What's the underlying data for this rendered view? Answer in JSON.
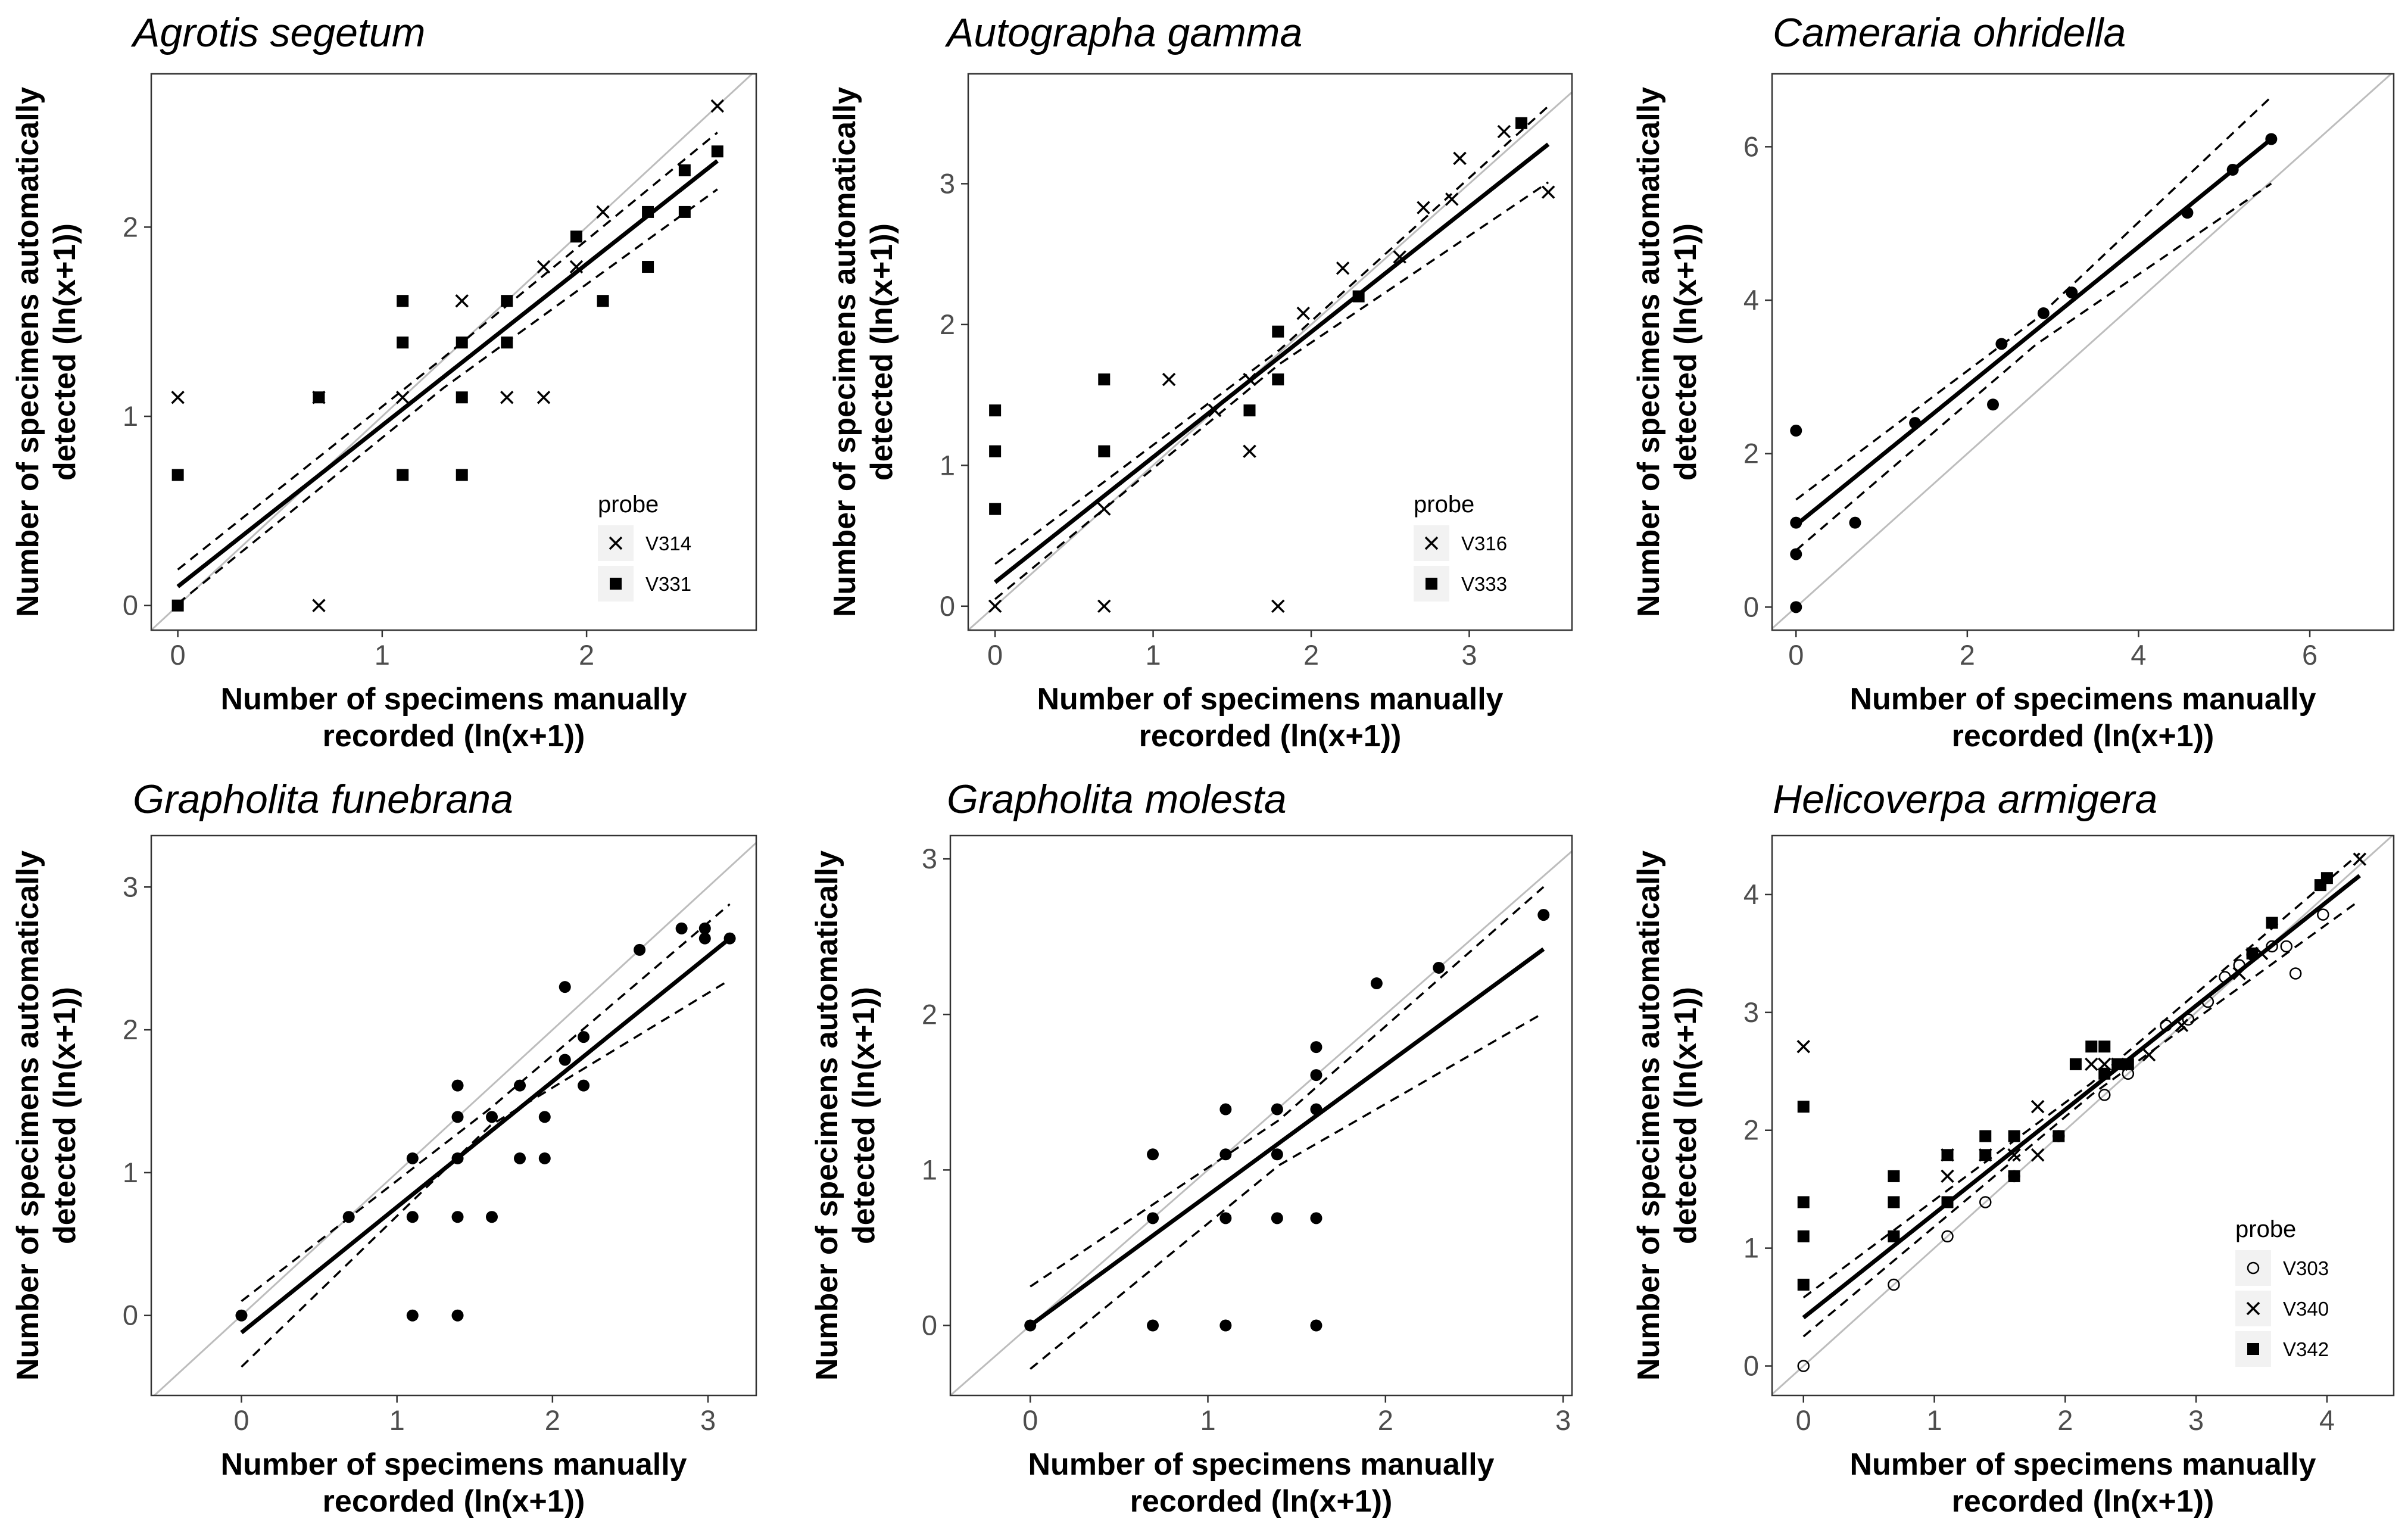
{
  "figure": {
    "description_free": true
  },
  "chart_data": [
    {
      "type": "scatter",
      "title": "Agrotis segetum",
      "xlabel": [
        "Number of specimens manually",
        "recorded (ln(x+1))"
      ],
      "ylabel": [
        "Number of specimens automatically",
        "detected (ln(x+1))"
      ],
      "xlim": [
        -0.13,
        2.83
      ],
      "ylim": [
        -0.13,
        2.81
      ],
      "xticks": [
        0,
        1,
        2
      ],
      "yticks": [
        0,
        1,
        2
      ],
      "fit": {
        "x0": 0,
        "y0": 0.1,
        "x1": 2.64,
        "y1": 2.35
      },
      "ci_upper": [
        [
          0,
          0.19
        ],
        [
          1.3,
          1.31
        ],
        [
          2.64,
          2.5
        ]
      ],
      "ci_lower": [
        [
          0,
          0.01
        ],
        [
          1.3,
          1.15
        ],
        [
          2.64,
          2.2
        ]
      ],
      "legend": {
        "title": "probe",
        "position": "bottom-right",
        "items": [
          {
            "label": "V314",
            "shape": "x"
          },
          {
            "label": "V331",
            "shape": "square"
          }
        ]
      },
      "series": [
        {
          "name": "V314",
          "shape": "x",
          "points": [
            [
              0,
              1.1
            ],
            [
              0.69,
              1.1
            ],
            [
              0.69,
              0
            ],
            [
              1.1,
              1.1
            ],
            [
              1.39,
              1.61
            ],
            [
              1.61,
              1.1
            ],
            [
              1.79,
              1.1
            ],
            [
              1.79,
              1.79
            ],
            [
              1.95,
              1.79
            ],
            [
              2.08,
              2.08
            ],
            [
              2.64,
              2.64
            ]
          ]
        },
        {
          "name": "V331",
          "shape": "square",
          "points": [
            [
              0,
              0.69
            ],
            [
              0,
              0
            ],
            [
              0.69,
              1.1
            ],
            [
              1.1,
              1.61
            ],
            [
              1.1,
              1.39
            ],
            [
              1.1,
              0.69
            ],
            [
              1.39,
              1.39
            ],
            [
              1.39,
              1.1
            ],
            [
              1.39,
              0.69
            ],
            [
              1.61,
              1.61
            ],
            [
              1.61,
              1.39
            ],
            [
              1.95,
              1.95
            ],
            [
              2.08,
              1.61
            ],
            [
              2.3,
              2.08
            ],
            [
              2.3,
              1.79
            ],
            [
              2.48,
              2.3
            ],
            [
              2.48,
              2.08
            ],
            [
              2.64,
              2.4
            ]
          ]
        }
      ]
    },
    {
      "type": "scatter",
      "title": "Autographa gamma",
      "xlabel": [
        "Number of specimens manually",
        "recorded (ln(x+1))"
      ],
      "ylabel": [
        "Number of specimens automatically",
        "detected (ln(x+1))"
      ],
      "xlim": [
        -0.17,
        3.65
      ],
      "ylim": [
        -0.17,
        3.78
      ],
      "xticks": [
        0,
        1,
        2,
        3
      ],
      "yticks": [
        0,
        1,
        2,
        3
      ],
      "fit": {
        "x0": 0,
        "y0": 0.17,
        "x1": 3.5,
        "y1": 3.28
      },
      "ci_upper": [
        [
          0,
          0.3
        ],
        [
          1.8,
          1.82
        ],
        [
          3.5,
          3.55
        ]
      ],
      "ci_lower": [
        [
          0,
          0.05
        ],
        [
          1.8,
          1.72
        ],
        [
          3.5,
          3.01
        ]
      ],
      "legend": {
        "title": "probe",
        "position": "bottom-right",
        "items": [
          {
            "label": "V316",
            "shape": "x"
          },
          {
            "label": "V333",
            "shape": "square"
          }
        ]
      },
      "series": [
        {
          "name": "V316",
          "shape": "x",
          "points": [
            [
              0,
              0
            ],
            [
              0.69,
              0.69
            ],
            [
              0.69,
              0
            ],
            [
              1.1,
              1.61
            ],
            [
              1.39,
              1.39
            ],
            [
              1.61,
              1.61
            ],
            [
              1.61,
              1.1
            ],
            [
              1.79,
              0
            ],
            [
              1.95,
              2.08
            ],
            [
              2.2,
              2.4
            ],
            [
              2.56,
              2.48
            ],
            [
              2.71,
              2.83
            ],
            [
              2.89,
              2.89
            ],
            [
              2.94,
              3.18
            ],
            [
              3.22,
              3.37
            ],
            [
              3.5,
              2.94
            ]
          ]
        },
        {
          "name": "V333",
          "shape": "square",
          "points": [
            [
              0,
              1.39
            ],
            [
              0,
              1.1
            ],
            [
              0,
              0.69
            ],
            [
              0.69,
              1.61
            ],
            [
              0.69,
              1.1
            ],
            [
              1.61,
              1.39
            ],
            [
              1.79,
              1.95
            ],
            [
              1.79,
              1.61
            ],
            [
              2.3,
              2.2
            ],
            [
              3.33,
              3.43
            ]
          ]
        }
      ]
    },
    {
      "type": "scatter",
      "title": "Cameraria ohridella",
      "xlabel": [
        "Number of specimens manually",
        "recorded (ln(x+1))"
      ],
      "ylabel": [
        "Number of specimens automatically",
        "detected (ln(x+1))"
      ],
      "xlim": [
        -0.28,
        6.98
      ],
      "ylim": [
        -0.3,
        6.95
      ],
      "xticks": [
        0,
        2,
        4,
        6
      ],
      "yticks": [
        0,
        2,
        4,
        6
      ],
      "fit": {
        "x0": 0,
        "y0": 1.07,
        "x1": 5.55,
        "y1": 6.1
      },
      "ci_upper": [
        [
          0,
          1.4
        ],
        [
          2.8,
          3.75
        ],
        [
          5.55,
          6.65
        ]
      ],
      "ci_lower": [
        [
          0,
          0.74
        ],
        [
          2.8,
          3.42
        ],
        [
          5.55,
          5.52
        ]
      ],
      "legend": null,
      "series": [
        {
          "name": "points",
          "shape": "circle",
          "points": [
            [
              0,
              2.3
            ],
            [
              0,
              1.1
            ],
            [
              0,
              0.69
            ],
            [
              0,
              0
            ],
            [
              0.69,
              1.1
            ],
            [
              1.39,
              2.4
            ],
            [
              2.3,
              2.64
            ],
            [
              2.4,
              3.43
            ],
            [
              2.89,
              3.83
            ],
            [
              3.22,
              4.1
            ],
            [
              4.57,
              5.14
            ],
            [
              5.1,
              5.7
            ],
            [
              5.55,
              6.1
            ]
          ]
        }
      ]
    },
    {
      "type": "scatter",
      "title": "Grapholita funebrana",
      "xlabel": [
        "Number of specimens manually",
        "recorded (ln(x+1))"
      ],
      "ylabel": [
        "Number of specimens automatically",
        "detected (ln(x+1))"
      ],
      "xlim": [
        -0.58,
        3.31
      ],
      "ylim": [
        -0.56,
        3.36
      ],
      "xticks": [
        0,
        1,
        2,
        3
      ],
      "yticks": [
        0,
        1,
        2,
        3
      ],
      "fit": {
        "x0": 0,
        "y0": -0.12,
        "x1": 3.14,
        "y1": 2.64
      },
      "ci_upper": [
        [
          0,
          0.1
        ],
        [
          1.6,
          1.45
        ],
        [
          3.14,
          2.88
        ]
      ],
      "ci_lower": [
        [
          0,
          -0.36
        ],
        [
          1.6,
          1.33
        ],
        [
          3.14,
          2.35
        ]
      ],
      "legend": null,
      "series": [
        {
          "name": "points",
          "shape": "circle",
          "points": [
            [
              0,
              0
            ],
            [
              0.69,
              0.69
            ],
            [
              1.1,
              1.1
            ],
            [
              1.1,
              0.69
            ],
            [
              1.1,
              0
            ],
            [
              1.39,
              1.61
            ],
            [
              1.39,
              1.39
            ],
            [
              1.39,
              1.1
            ],
            [
              1.39,
              0.69
            ],
            [
              1.39,
              0
            ],
            [
              1.61,
              1.39
            ],
            [
              1.61,
              0.69
            ],
            [
              1.79,
              1.61
            ],
            [
              1.79,
              1.1
            ],
            [
              1.95,
              1.39
            ],
            [
              1.95,
              1.1
            ],
            [
              2.08,
              2.3
            ],
            [
              2.08,
              1.79
            ],
            [
              2.2,
              1.95
            ],
            [
              2.2,
              1.61
            ],
            [
              2.56,
              2.56
            ],
            [
              2.83,
              2.71
            ],
            [
              2.98,
              2.71
            ],
            [
              2.98,
              2.64
            ],
            [
              3.14,
              2.64
            ]
          ]
        }
      ]
    },
    {
      "type": "scatter",
      "title": "Grapholita molesta",
      "xlabel": [
        "Number of specimens manually",
        "recorded (ln(x+1))"
      ],
      "ylabel": [
        "Number of specimens automatically",
        "detected (ln(x+1))"
      ],
      "xlim": [
        -0.45,
        3.05
      ],
      "ylim": [
        -0.45,
        3.15
      ],
      "xticks": [
        0,
        1,
        2,
        3
      ],
      "yticks": [
        0,
        1,
        2,
        3
      ],
      "fit": {
        "x0": 0,
        "y0": 0,
        "x1": 2.89,
        "y1": 2.42
      },
      "ci_upper": [
        [
          0,
          0.25
        ],
        [
          1.4,
          1.32
        ],
        [
          2.89,
          2.82
        ]
      ],
      "ci_lower": [
        [
          0,
          -0.28
        ],
        [
          1.4,
          1.03
        ],
        [
          2.89,
          2.01
        ]
      ],
      "legend": null,
      "series": [
        {
          "name": "points",
          "shape": "circle",
          "points": [
            [
              0,
              0
            ],
            [
              0.69,
              1.1
            ],
            [
              0.69,
              0.69
            ],
            [
              0.69,
              0
            ],
            [
              1.1,
              1.39
            ],
            [
              1.1,
              1.1
            ],
            [
              1.1,
              0.69
            ],
            [
              1.1,
              0
            ],
            [
              1.39,
              1.39
            ],
            [
              1.39,
              1.1
            ],
            [
              1.39,
              0.69
            ],
            [
              1.61,
              1.79
            ],
            [
              1.61,
              1.61
            ],
            [
              1.61,
              1.39
            ],
            [
              1.61,
              0.69
            ],
            [
              1.61,
              0
            ],
            [
              1.95,
              2.2
            ],
            [
              2.3,
              2.3
            ],
            [
              2.89,
              2.64
            ]
          ]
        }
      ]
    },
    {
      "type": "scatter",
      "title": "Helicoverpa armigera",
      "xlabel": [
        "Number of specimens manually",
        "recorded (ln(x+1))"
      ],
      "ylabel": [
        "Number of specimens automatically",
        "detected (ln(x+1))"
      ],
      "xlim": [
        -0.24,
        4.51
      ],
      "ylim": [
        -0.25,
        4.5
      ],
      "xticks": [
        0,
        1,
        2,
        3,
        4
      ],
      "yticks": [
        0,
        1,
        2,
        3,
        4
      ],
      "fit": {
        "x0": 0,
        "y0": 0.41,
        "x1": 4.25,
        "y1": 4.16
      },
      "ci_upper": [
        [
          0,
          0.58
        ],
        [
          2.2,
          2.4
        ],
        [
          4.25,
          4.35
        ]
      ],
      "ci_lower": [
        [
          0,
          0.25
        ],
        [
          2.2,
          2.3
        ],
        [
          4.25,
          3.95
        ]
      ],
      "legend": {
        "title": "probe",
        "position": "bottom-right",
        "items": [
          {
            "label": "V303",
            "shape": "open-circle"
          },
          {
            "label": "V340",
            "shape": "x"
          },
          {
            "label": "V342",
            "shape": "square"
          }
        ]
      },
      "series": [
        {
          "name": "V303",
          "shape": "open-circle",
          "points": [
            [
              0,
              0
            ],
            [
              0.69,
              0.69
            ],
            [
              1.1,
              1.1
            ],
            [
              1.39,
              1.39
            ],
            [
              1.61,
              1.61
            ],
            [
              1.95,
              1.95
            ],
            [
              2.3,
              2.3
            ],
            [
              2.48,
              2.48
            ],
            [
              2.77,
              2.89
            ],
            [
              2.94,
              2.94
            ],
            [
              3.09,
              3.09
            ],
            [
              3.22,
              3.3
            ],
            [
              3.33,
              3.4
            ],
            [
              3.43,
              3.49
            ],
            [
              3.58,
              3.56
            ],
            [
              3.69,
              3.56
            ],
            [
              3.76,
              3.33
            ],
            [
              3.97,
              3.83
            ]
          ]
        },
        {
          "name": "V340",
          "shape": "x",
          "points": [
            [
              0,
              2.71
            ],
            [
              1.1,
              1.61
            ],
            [
              1.1,
              1.79
            ],
            [
              1.39,
              1.79
            ],
            [
              1.61,
              1.79
            ],
            [
              1.79,
              2.2
            ],
            [
              1.79,
              1.79
            ],
            [
              2.2,
              2.56
            ],
            [
              2.3,
              2.56
            ],
            [
              2.4,
              2.56
            ],
            [
              2.64,
              2.64
            ],
            [
              2.89,
              2.89
            ],
            [
              3.33,
              3.33
            ],
            [
              3.5,
              3.5
            ],
            [
              4.25,
              4.3
            ]
          ]
        },
        {
          "name": "V342",
          "shape": "square",
          "points": [
            [
              0,
              2.2
            ],
            [
              0,
              1.39
            ],
            [
              0,
              1.1
            ],
            [
              0,
              0.69
            ],
            [
              0.69,
              1.61
            ],
            [
              0.69,
              1.39
            ],
            [
              0.69,
              1.1
            ],
            [
              1.1,
              1.79
            ],
            [
              1.1,
              1.39
            ],
            [
              1.39,
              1.95
            ],
            [
              1.39,
              1.79
            ],
            [
              1.61,
              1.95
            ],
            [
              1.61,
              1.61
            ],
            [
              1.95,
              1.95
            ],
            [
              2.08,
              2.56
            ],
            [
              2.2,
              2.71
            ],
            [
              2.3,
              2.71
            ],
            [
              2.3,
              2.48
            ],
            [
              2.4,
              2.56
            ],
            [
              2.48,
              2.56
            ],
            [
              3.43,
              3.5
            ],
            [
              3.58,
              3.76
            ],
            [
              3.95,
              4.08
            ],
            [
              4.0,
              4.14
            ]
          ]
        }
      ]
    }
  ]
}
